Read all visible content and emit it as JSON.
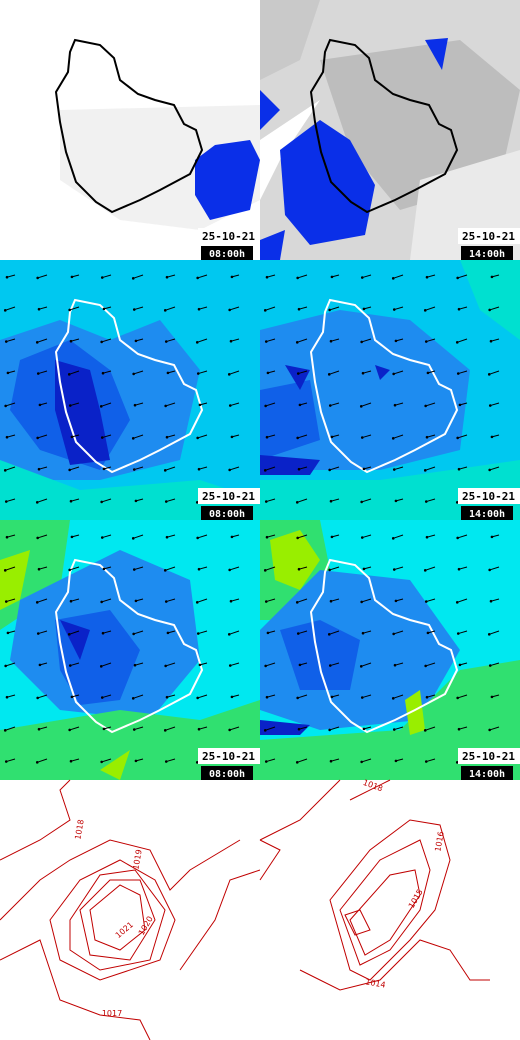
{
  "panels": [
    {
      "date": "25-10-21",
      "time": "08:00h"
    },
    {
      "date": "25-10-21",
      "time": "14:00h"
    },
    {
      "date": "25-10-21",
      "time": "08:00h"
    },
    {
      "date": "25-10-21",
      "time": "14:00h"
    },
    {
      "date": "25-10-21",
      "time": "08:00h"
    },
    {
      "date": "25-10-21",
      "time": "14:00h"
    }
  ],
  "isobars": {
    "left": [
      "1018",
      "1019",
      "1021",
      "1020",
      "1017"
    ],
    "right": [
      "1018",
      "1016",
      "1015",
      "1014"
    ]
  }
}
